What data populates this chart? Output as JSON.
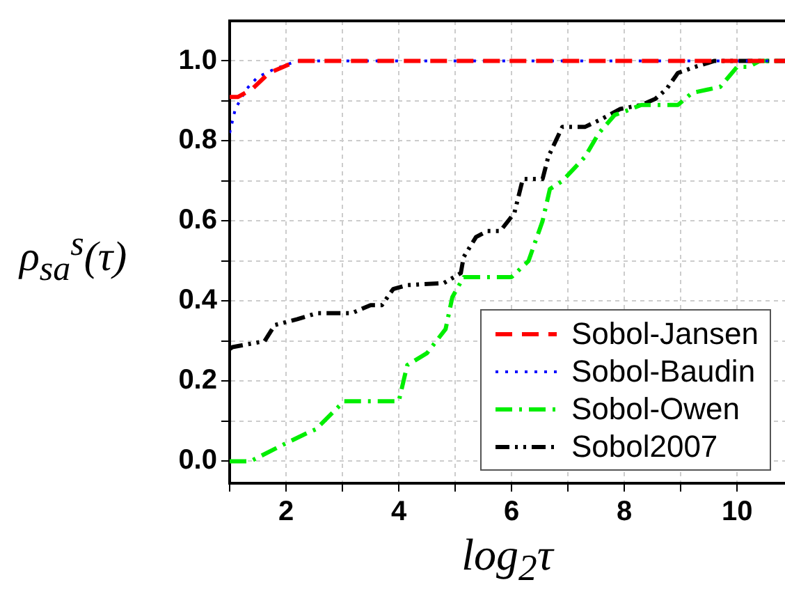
{
  "chart_data": {
    "type": "line",
    "xlabel": "log$_{2}$τ",
    "ylabel": "ρ$_{sa}$$^{s}$(τ)",
    "xlim": [
      1,
      10.85
    ],
    "ylim": [
      -0.055,
      1.1
    ],
    "xticks": [
      {
        "value": 1,
        "label": null
      },
      2,
      {
        "value": 3,
        "label": null
      },
      4,
      {
        "value": 5,
        "label": null
      },
      6,
      {
        "value": 7,
        "label": null
      },
      8,
      {
        "value": 9,
        "label": null
      },
      10
    ],
    "yticks": [
      {
        "value": 0,
        "label": "0.0"
      },
      {
        "value": 0.1,
        "label": null
      },
      0.2,
      {
        "value": 0.3,
        "label": null
      },
      0.4,
      {
        "value": 0.5,
        "label": null
      },
      0.6,
      {
        "value": 0.7,
        "label": null
      },
      0.8,
      {
        "value": 0.9,
        "label": null
      },
      {
        "value": 1,
        "label": "1.0"
      }
    ],
    "grid": true,
    "legend": "bottom right",
    "marker": "none",
    "series": [
      {
        "name": "Sobol-Jansen",
        "color": "#ff0000",
        "line_style": "dashed",
        "x": [
          1,
          1.15,
          1.4,
          1.7,
          2.2,
          10.85
        ],
        "values": [
          0.91,
          0.91,
          0.93,
          0.97,
          1.0,
          1.0
        ]
      },
      {
        "name": "Sobol-Baudin",
        "color": "#0000ff",
        "line_style": "dotted",
        "x": [
          1,
          1.1,
          1.3,
          1.5,
          1.8,
          2.2,
          10.85
        ],
        "values": [
          0.82,
          0.88,
          0.93,
          0.96,
          0.98,
          1.0,
          1.0
        ]
      },
      {
        "name": "Sobol-Owen",
        "color": "#00ee00",
        "line_style": "dashdot",
        "x": [
          1,
          1.37,
          2,
          2.37,
          2.53,
          3.03,
          4,
          4.15,
          4.5,
          4.83,
          4.95,
          5.15,
          6,
          6.3,
          6.55,
          6.68,
          6.9,
          7.3,
          7.55,
          7.83,
          8.03,
          8.3,
          8.95,
          9.2,
          9.7,
          10,
          10.2,
          10.4,
          10.85
        ],
        "values": [
          0,
          0,
          0.045,
          0.07,
          0.08,
          0.15,
          0.15,
          0.24,
          0.27,
          0.33,
          0.41,
          0.46,
          0.46,
          0.5,
          0.6,
          0.68,
          0.7,
          0.76,
          0.82,
          0.865,
          0.875,
          0.89,
          0.89,
          0.92,
          0.935,
          0.985,
          0.985,
          1.0,
          1.0
        ]
      },
      {
        "name": "Sobol2007",
        "color": "#000000",
        "line_style": "dashdotdot",
        "x": [
          1,
          1.05,
          1.62,
          1.8,
          2.2,
          2.55,
          3.17,
          3.5,
          3.7,
          3.9,
          4.15,
          4.8,
          5.1,
          5.15,
          5.37,
          5.57,
          5.8,
          6.05,
          6.2,
          6.55,
          6.65,
          6.9,
          7.3,
          7.6,
          7.93,
          8.3,
          8.55,
          8.75,
          8.95,
          9.25,
          9.6,
          10.85
        ],
        "values": [
          0.28,
          0.285,
          0.3,
          0.34,
          0.355,
          0.37,
          0.37,
          0.39,
          0.39,
          0.43,
          0.44,
          0.445,
          0.47,
          0.51,
          0.56,
          0.575,
          0.575,
          0.62,
          0.705,
          0.705,
          0.76,
          0.835,
          0.835,
          0.855,
          0.88,
          0.89,
          0.905,
          0.93,
          0.97,
          0.985,
          1.0,
          1.0
        ]
      }
    ]
  }
}
